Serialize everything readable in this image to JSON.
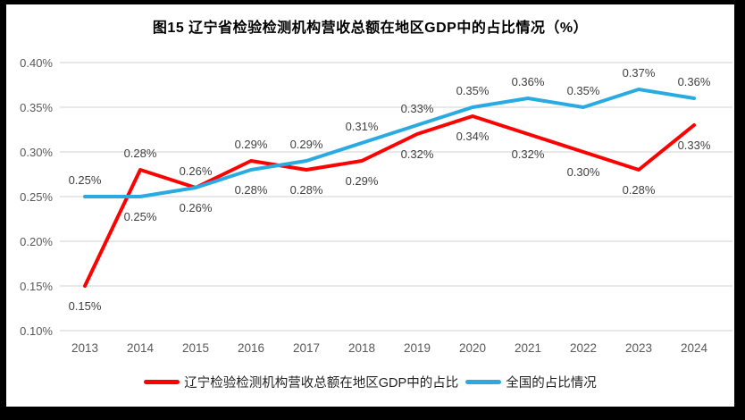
{
  "chart_data": {
    "type": "line",
    "title": "图15 辽宁省检验检测机构营收总额在地区GDP中的占比情况（%）",
    "categories": [
      "2013",
      "2014",
      "2015",
      "2016",
      "2017",
      "2018",
      "2019",
      "2020",
      "2021",
      "2022",
      "2023",
      "2024"
    ],
    "series": [
      {
        "name": "辽宁检验检测机构营收总额在地区GDP中的占比",
        "color": "#FF0000",
        "values": [
          0.15,
          0.28,
          0.26,
          0.29,
          0.28,
          0.29,
          0.32,
          0.34,
          0.32,
          0.3,
          0.28,
          0.33
        ],
        "labels": [
          "0.15%",
          "0.28%",
          "0.26%",
          "0.29%",
          "0.28%",
          "0.29%",
          "0.32%",
          "0.34%",
          "0.32%",
          "0.30%",
          "0.28%",
          "0.33%"
        ],
        "label_positions": [
          "below",
          "above",
          "above",
          "above",
          "below",
          "below",
          "below",
          "below",
          "below",
          "below",
          "below",
          "below"
        ]
      },
      {
        "name": "全国的占比情况",
        "color": "#29ABE2",
        "values": [
          0.25,
          0.25,
          0.26,
          0.28,
          0.29,
          0.31,
          0.33,
          0.35,
          0.36,
          0.35,
          0.37,
          0.36
        ],
        "labels": [
          "0.25%",
          "0.25%",
          "0.26%",
          "0.28%",
          "0.29%",
          "0.31%",
          "0.33%",
          "0.35%",
          "0.36%",
          "0.35%",
          "0.37%",
          "0.36%"
        ],
        "label_positions": [
          "above",
          "below",
          "below",
          "below",
          "above",
          "above",
          "above",
          "above",
          "above",
          "above",
          "above",
          "above"
        ]
      }
    ],
    "y_axis": {
      "min": 0.1,
      "max": 0.4,
      "step": 0.05,
      "tick_labels": [
        "0.40%",
        "0.35%",
        "0.30%",
        "0.25%",
        "0.20%",
        "0.15%",
        "0.10%"
      ]
    },
    "grid": true,
    "legend_position": "bottom",
    "colors": {
      "gridline": "#D9D9D9",
      "axis_text": "#595959",
      "data_label": "#3F3F3F",
      "frame": "#000000",
      "background": "#FFFFFF"
    }
  }
}
